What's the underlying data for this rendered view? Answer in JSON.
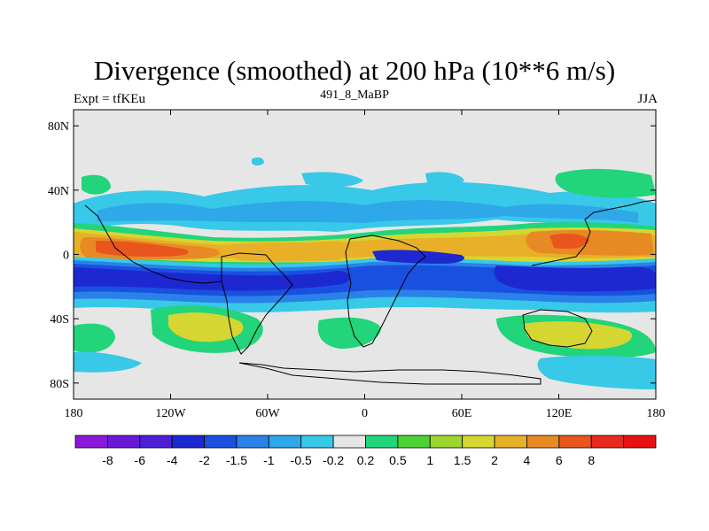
{
  "title": "Divergence (smoothed) at 200 hPa (10**6 m/s)",
  "subtitle_left": "Expt = tfKEu",
  "subtitle_center": "491_8_MaBP",
  "subtitle_right": "JJA",
  "map": {
    "lon_range": [
      -180,
      180
    ],
    "lat_range": [
      -90,
      90
    ],
    "lat_ticks": [
      {
        "lat": 80,
        "label": "80N"
      },
      {
        "lat": 40,
        "label": "40N"
      },
      {
        "lat": 0,
        "label": "0"
      },
      {
        "lat": -40,
        "label": "40S"
      },
      {
        "lat": -80,
        "label": "80S"
      }
    ],
    "lon_ticks": [
      {
        "lon": -180,
        "label": "180"
      },
      {
        "lon": -120,
        "label": "120W"
      },
      {
        "lon": -60,
        "label": "60W"
      },
      {
        "lon": 0,
        "label": "0"
      },
      {
        "lon": 60,
        "label": "60E"
      },
      {
        "lon": 120,
        "label": "120E"
      },
      {
        "lon": 180,
        "label": "180"
      }
    ],
    "background_color": "#e6e6e6"
  },
  "colorbar": {
    "colors": [
      "#8a18d8",
      "#6a18d8",
      "#4b1ed8",
      "#1e28d0",
      "#1a50e0",
      "#2a82e8",
      "#2ea8e8",
      "#38c8e8",
      "#e6e6e6",
      "#22d47a",
      "#4cd236",
      "#9cd62e",
      "#d6d632",
      "#e8b028",
      "#e88a24",
      "#e8561e",
      "#e82a1c",
      "#e81010"
    ],
    "labels": [
      "-8",
      "-6",
      "-4",
      "-2",
      "-1.5",
      "-1",
      "-0.5",
      "-0.2",
      "0.2",
      "0.5",
      "1",
      "1.5",
      "2",
      "4",
      "6",
      "8"
    ]
  }
}
